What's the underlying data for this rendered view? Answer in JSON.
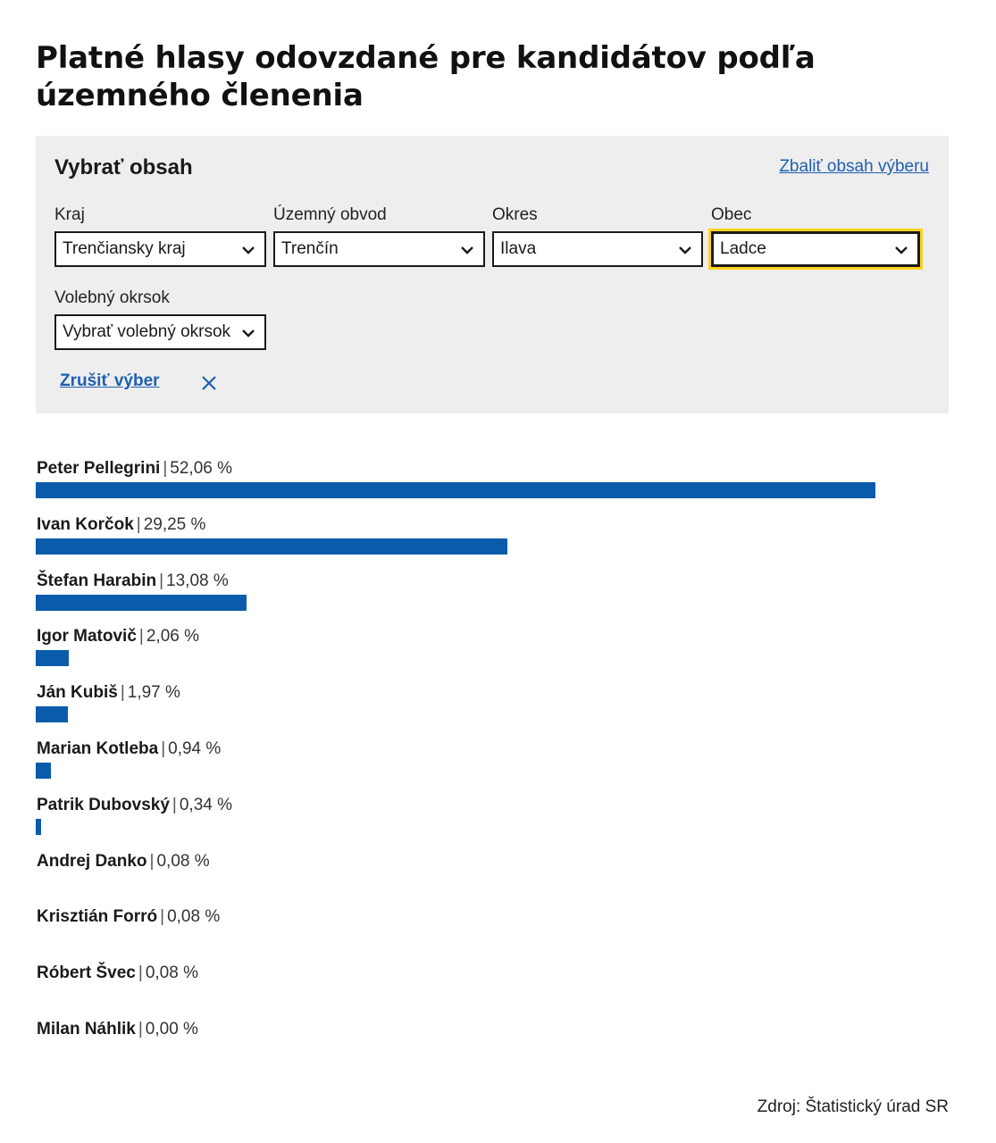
{
  "page": {
    "title": "Platné hlasy odovzdané pre kandidátov podľa územného členenia",
    "source": "Zdroj: Štatistický úrad SR"
  },
  "filters": {
    "heading": "Vybrať obsah",
    "collapse_link": "Zbaliť obsah výberu",
    "kraj": {
      "label": "Kraj",
      "value": "Trenčiansky kraj"
    },
    "uzemny_obvod": {
      "label": "Územný obvod",
      "value": "Trenčín"
    },
    "okres": {
      "label": "Okres",
      "value": "Ilava"
    },
    "obec": {
      "label": "Obec",
      "value": "Ladce"
    },
    "volebny_okrsok": {
      "label": "Volebný okrsok",
      "value": "Vybrať volebný okrsok"
    },
    "reset_link": "Zrušiť výber"
  },
  "icons": {
    "dropdown": "chevron-down-icon",
    "reset": "close-icon"
  },
  "colors": {
    "bar": "#0a5cab",
    "link": "#1f5fb0",
    "focus": "#ffd21e",
    "panel": "#eeeeee"
  },
  "chart_data": {
    "type": "bar",
    "orientation": "horizontal",
    "unit": "%",
    "categories": [
      "Peter Pellegrini",
      "Ivan Korčok",
      "Štefan Harabin",
      "Igor Matovič",
      "Ján Kubiš",
      "Marian Kotleba",
      "Patrik Dubovský",
      "Andrej Danko",
      "Krisztián Forró",
      "Róbert Švec",
      "Milan Náhlik"
    ],
    "values": [
      52.06,
      29.25,
      13.08,
      2.06,
      1.97,
      0.94,
      0.34,
      0.08,
      0.08,
      0.08,
      0.0
    ],
    "value_labels": [
      "52,06 %",
      "29,25 %",
      "13,08 %",
      "2,06 %",
      "1,97 %",
      "0,94 %",
      "0,34 %",
      "0,08 %",
      "0,08 %",
      "0,08 %",
      "0,00 %"
    ],
    "separator": "|"
  }
}
